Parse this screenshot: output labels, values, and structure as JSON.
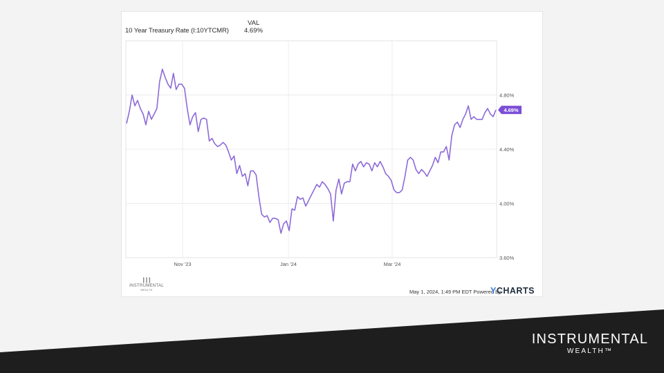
{
  "header": {
    "series_title": "10 Year Treasury Rate (I:10YTCMR)",
    "col_label": "VAL",
    "col_value": "4.69%"
  },
  "footer": {
    "timestamp": "May 1, 2024, 1:49 PM EDT Powered by",
    "logo_mark": "Y",
    "logo_text": "CHARTS",
    "small_logo_name": "INSTRUMENTAL",
    "small_logo_sub": "WEALTH"
  },
  "brand": {
    "name": "INSTRUMENTAL",
    "sub": "WEALTH™"
  },
  "colors": {
    "line": "#8c6ad8",
    "badge": "#7b4fd6",
    "slide_dark": "#1e1e1e"
  },
  "chart_data": {
    "type": "line",
    "title": "10 Year Treasury Rate (I:10YTCMR)",
    "x_ticks": [
      "Nov '23",
      "Jan '24",
      "Mar '24"
    ],
    "y_ticks": [
      "4.80%",
      "4.40%",
      "4.00%",
      "3.60%"
    ],
    "ylim": [
      3.6,
      5.2
    ],
    "last_value_label": "4.69%",
    "grid": true,
    "series": [
      {
        "values": [
          4.59,
          4.68,
          4.8,
          4.72,
          4.76,
          4.7,
          4.66,
          4.58,
          4.68,
          4.62,
          4.66,
          4.7,
          4.9,
          4.99,
          4.93,
          4.88,
          4.85,
          4.96,
          4.84,
          4.88,
          4.88,
          4.85,
          4.7,
          4.58,
          4.64,
          4.67,
          4.53,
          4.62,
          4.63,
          4.62,
          4.46,
          4.48,
          4.44,
          4.42,
          4.43,
          4.45,
          4.43,
          4.38,
          4.32,
          4.35,
          4.22,
          4.28,
          4.2,
          4.22,
          4.13,
          4.24,
          4.24,
          4.21,
          4.05,
          3.92,
          3.9,
          3.91,
          3.86,
          3.89,
          3.89,
          3.88,
          3.78,
          3.85,
          3.87,
          3.8,
          3.96,
          3.95,
          4.05,
          4.03,
          4.04,
          3.98,
          4.02,
          4.06,
          4.1,
          4.14,
          4.12,
          4.16,
          4.14,
          4.11,
          4.07,
          3.87,
          4.1,
          4.18,
          4.07,
          4.15,
          4.16,
          4.16,
          4.29,
          4.24,
          4.29,
          4.31,
          4.27,
          4.3,
          4.29,
          4.24,
          4.3,
          4.27,
          4.31,
          4.27,
          4.22,
          4.2,
          4.17,
          4.1,
          4.08,
          4.08,
          4.1,
          4.2,
          4.32,
          4.34,
          4.32,
          4.25,
          4.22,
          4.25,
          4.23,
          4.2,
          4.24,
          4.28,
          4.34,
          4.3,
          4.38,
          4.38,
          4.42,
          4.32,
          4.5,
          4.58,
          4.6,
          4.56,
          4.62,
          4.66,
          4.72,
          4.62,
          4.64,
          4.62,
          4.62,
          4.62,
          4.67,
          4.7,
          4.66,
          4.64,
          4.69
        ]
      }
    ]
  }
}
